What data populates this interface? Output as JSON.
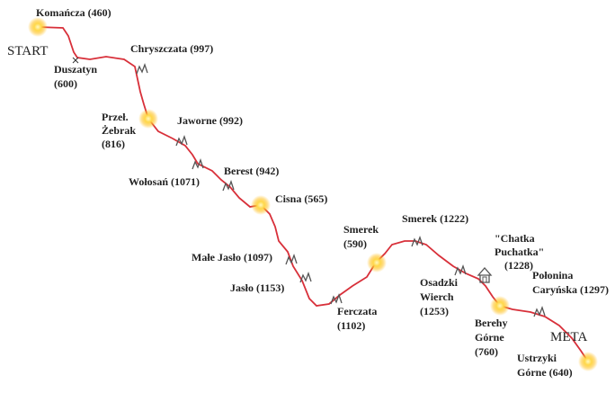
{
  "start": "START",
  "finish": "META",
  "places": [
    {
      "lines": [
        "Komańcza (460)"
      ]
    },
    {
      "lines": [
        "Duszatyn",
        "(600)"
      ]
    },
    {
      "lines": [
        "Chryszczata (997)"
      ]
    },
    {
      "lines": [
        "Przeł.",
        "Żebrak",
        "(816)"
      ]
    },
    {
      "lines": [
        "Jaworne (992)"
      ]
    },
    {
      "lines": [
        "Wołosań (1071)"
      ]
    },
    {
      "lines": [
        "Berest (942)"
      ]
    },
    {
      "lines": [
        "Cisna (565)"
      ]
    },
    {
      "lines": [
        "Małe Jasło (1097)"
      ]
    },
    {
      "lines": [
        "Jasło (1153)"
      ]
    },
    {
      "lines": [
        "Ferczata",
        "(1102)"
      ]
    },
    {
      "lines": [
        "Smerek",
        "(590)"
      ]
    },
    {
      "lines": [
        "Smerek (1222)"
      ]
    },
    {
      "lines": [
        "Osadzki",
        "Wierch",
        "(1253)"
      ]
    },
    {
      "lines": [
        "\"Chatka",
        "Puchatka\"",
        "(1228)"
      ]
    },
    {
      "lines": [
        "Berehy",
        "Górne",
        "(760)"
      ]
    },
    {
      "lines": [
        "Połonina",
        "Caryńska (1297)"
      ]
    },
    {
      "lines": [
        "Ustrzyki",
        "Górne (640)"
      ]
    }
  ]
}
